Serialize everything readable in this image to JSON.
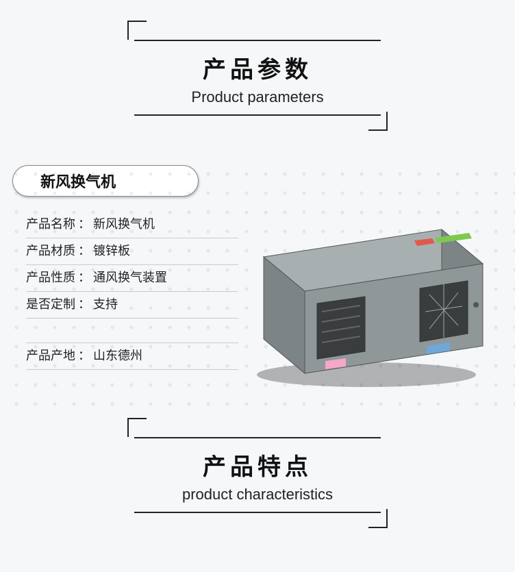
{
  "section1": {
    "title_cn": "产品参数",
    "title_en": "Product parameters"
  },
  "pill": "新风换气机",
  "specs": [
    {
      "label": "产品名称",
      "value": "新风换气机"
    },
    {
      "label": "产品材质",
      "value": "镀锌板"
    },
    {
      "label": "产品性质",
      "value": "通风换气装置"
    },
    {
      "label": "是否定制",
      "value": "支持"
    },
    {
      "label": "",
      "value": ""
    },
    {
      "label": "产品产地",
      "value": "山东德州"
    }
  ],
  "section2": {
    "title_cn": "产品特点",
    "title_en": "product characteristics"
  },
  "style": {
    "box_top_fill": "#a8afb1",
    "box_front_fill": "#8f9799",
    "box_side_fill": "#7d8486",
    "grille_dark": "#3a3d3e",
    "label_pink": "#f4a8c8",
    "label_blue": "#6fa8d8",
    "accent_green": "#7ec850",
    "accent_red": "#e05a4a",
    "background": "#f5f7f9",
    "shadow": "rgba(0,0,0,0.28)"
  }
}
